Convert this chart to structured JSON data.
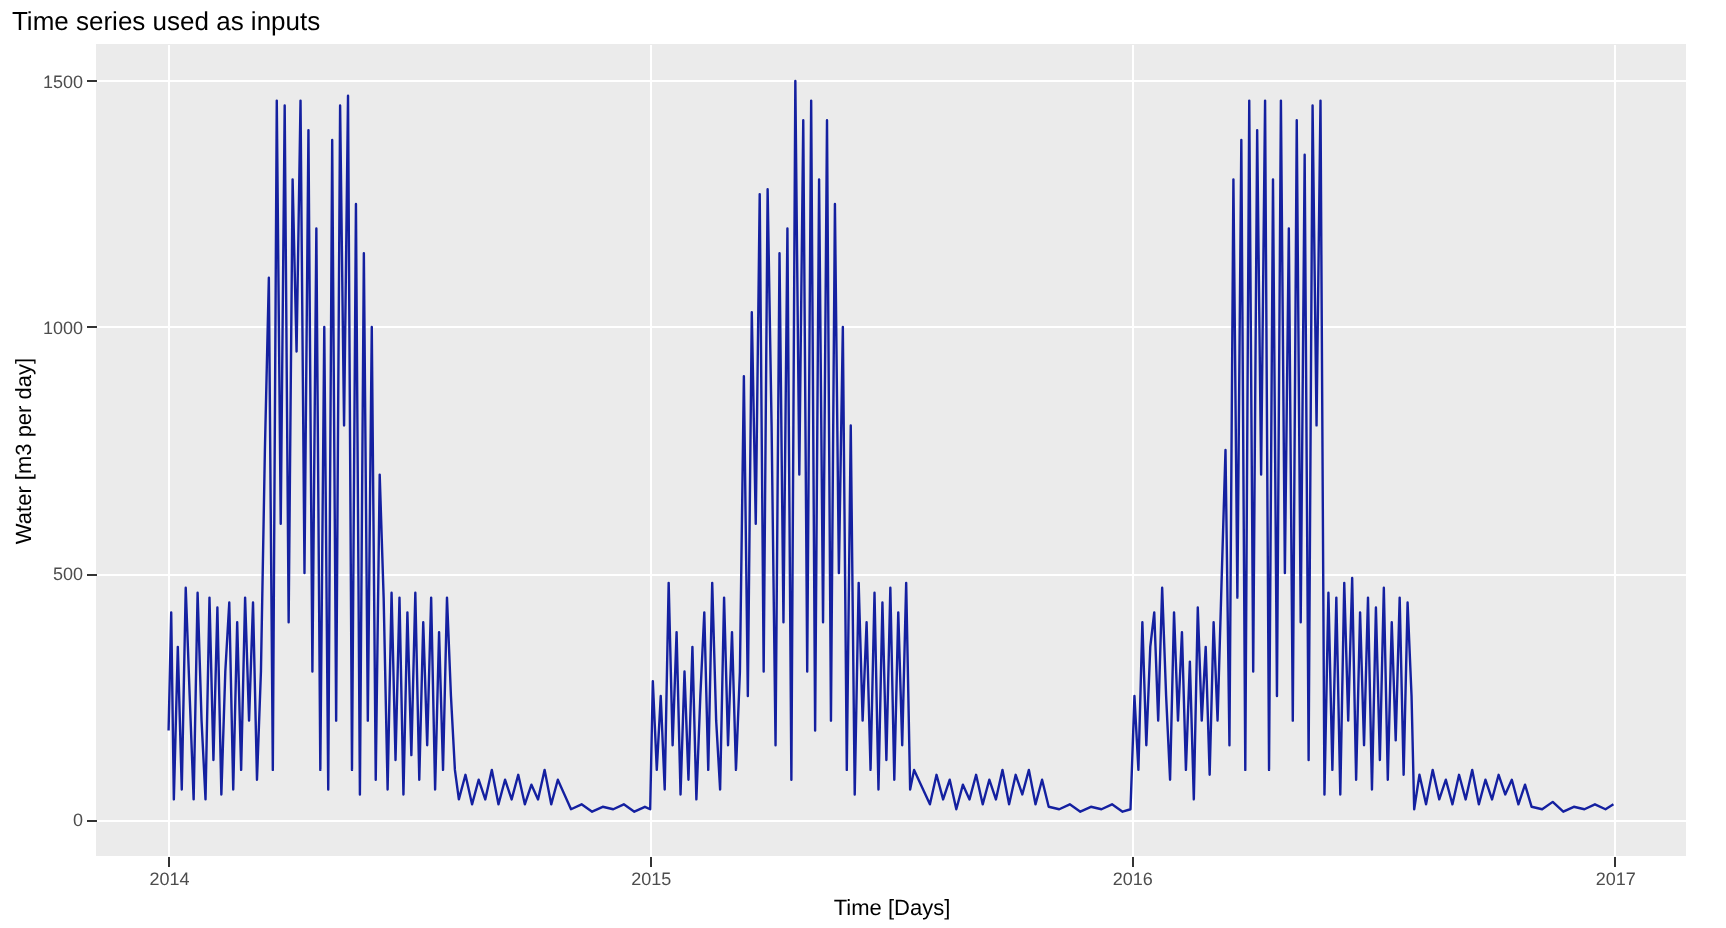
{
  "chart_data": {
    "type": "line",
    "title": "Time series used as inputs",
    "xlabel": "Time [Days]",
    "ylabel": "Water [m3 per day]",
    "xlim": [
      "2013-11-07",
      "2017-02-24"
    ],
    "xticks": [
      "2014",
      "2015",
      "2016",
      "2017"
    ],
    "ylim": [
      -75,
      1575
    ],
    "yticks": [
      0,
      500,
      1000,
      1500
    ],
    "grid": true,
    "line_style": "solid",
    "marker": "none",
    "series": [
      {
        "color": "#1420a0",
        "x": [
          "2014-01-01",
          "2014-01-03",
          "2014-01-05",
          "2014-01-08",
          "2014-01-11",
          "2014-01-14",
          "2014-01-17",
          "2014-01-20",
          "2014-01-23",
          "2014-01-26",
          "2014-01-29",
          "2014-02-01",
          "2014-02-04",
          "2014-02-07",
          "2014-02-10",
          "2014-02-13",
          "2014-02-16",
          "2014-02-19",
          "2014-02-22",
          "2014-02-25",
          "2014-02-28",
          "2014-03-03",
          "2014-03-06",
          "2014-03-09",
          "2014-03-12",
          "2014-03-15",
          "2014-03-18",
          "2014-03-21",
          "2014-03-24",
          "2014-03-27",
          "2014-03-30",
          "2014-04-02",
          "2014-04-05",
          "2014-04-08",
          "2014-04-11",
          "2014-04-14",
          "2014-04-17",
          "2014-04-20",
          "2014-04-23",
          "2014-04-26",
          "2014-04-29",
          "2014-05-02",
          "2014-05-05",
          "2014-05-08",
          "2014-05-11",
          "2014-05-14",
          "2014-05-17",
          "2014-05-20",
          "2014-05-23",
          "2014-05-26",
          "2014-05-29",
          "2014-06-01",
          "2014-06-04",
          "2014-06-07",
          "2014-06-10",
          "2014-06-13",
          "2014-06-16",
          "2014-06-19",
          "2014-06-22",
          "2014-06-25",
          "2014-06-28",
          "2014-07-01",
          "2014-07-04",
          "2014-07-07",
          "2014-07-10",
          "2014-07-13",
          "2014-07-16",
          "2014-07-19",
          "2014-07-22",
          "2014-07-25",
          "2014-07-28",
          "2014-07-31",
          "2014-08-03",
          "2014-08-06",
          "2014-08-09",
          "2014-08-14",
          "2014-08-19",
          "2014-08-24",
          "2014-08-29",
          "2014-09-03",
          "2014-09-08",
          "2014-09-13",
          "2014-09-18",
          "2014-09-23",
          "2014-09-28",
          "2014-10-03",
          "2014-10-08",
          "2014-10-13",
          "2014-10-18",
          "2014-10-23",
          "2014-10-28",
          "2014-11-02",
          "2014-11-10",
          "2014-11-18",
          "2014-11-26",
          "2014-12-04",
          "2014-12-12",
          "2014-12-20",
          "2014-12-28",
          "2015-01-01",
          "2015-01-03",
          "2015-01-06",
          "2015-01-09",
          "2015-01-12",
          "2015-01-15",
          "2015-01-18",
          "2015-01-21",
          "2015-01-24",
          "2015-01-27",
          "2015-01-30",
          "2015-02-02",
          "2015-02-05",
          "2015-02-08",
          "2015-02-11",
          "2015-02-14",
          "2015-02-17",
          "2015-02-20",
          "2015-02-23",
          "2015-02-26",
          "2015-03-01",
          "2015-03-04",
          "2015-03-07",
          "2015-03-10",
          "2015-03-13",
          "2015-03-16",
          "2015-03-19",
          "2015-03-22",
          "2015-03-25",
          "2015-03-28",
          "2015-03-31",
          "2015-04-03",
          "2015-04-06",
          "2015-04-09",
          "2015-04-12",
          "2015-04-15",
          "2015-04-18",
          "2015-04-21",
          "2015-04-24",
          "2015-04-27",
          "2015-04-30",
          "2015-05-03",
          "2015-05-06",
          "2015-05-09",
          "2015-05-12",
          "2015-05-15",
          "2015-05-18",
          "2015-05-21",
          "2015-05-24",
          "2015-05-27",
          "2015-05-30",
          "2015-06-02",
          "2015-06-05",
          "2015-06-08",
          "2015-06-11",
          "2015-06-14",
          "2015-06-17",
          "2015-06-20",
          "2015-06-23",
          "2015-06-26",
          "2015-06-29",
          "2015-07-02",
          "2015-07-05",
          "2015-07-08",
          "2015-07-11",
          "2015-07-14",
          "2015-07-17",
          "2015-07-20",
          "2015-08-01",
          "2015-08-06",
          "2015-08-11",
          "2015-08-16",
          "2015-08-21",
          "2015-08-26",
          "2015-08-31",
          "2015-09-05",
          "2015-09-10",
          "2015-09-15",
          "2015-09-20",
          "2015-09-25",
          "2015-09-30",
          "2015-10-05",
          "2015-10-10",
          "2015-10-15",
          "2015-10-20",
          "2015-10-25",
          "2015-10-30",
          "2015-11-07",
          "2015-11-15",
          "2015-11-23",
          "2015-12-01",
          "2015-12-09",
          "2015-12-17",
          "2015-12-25",
          "2015-12-31",
          "2016-01-03",
          "2016-01-06",
          "2016-01-09",
          "2016-01-12",
          "2016-01-15",
          "2016-01-18",
          "2016-01-21",
          "2016-01-24",
          "2016-01-27",
          "2016-01-30",
          "2016-02-02",
          "2016-02-05",
          "2016-02-08",
          "2016-02-11",
          "2016-02-14",
          "2016-02-17",
          "2016-02-20",
          "2016-02-23",
          "2016-02-26",
          "2016-02-29",
          "2016-03-03",
          "2016-03-06",
          "2016-03-09",
          "2016-03-12",
          "2016-03-15",
          "2016-03-18",
          "2016-03-21",
          "2016-03-24",
          "2016-03-27",
          "2016-03-30",
          "2016-04-02",
          "2016-04-05",
          "2016-04-08",
          "2016-04-11",
          "2016-04-14",
          "2016-04-17",
          "2016-04-20",
          "2016-04-23",
          "2016-04-26",
          "2016-04-29",
          "2016-05-02",
          "2016-05-05",
          "2016-05-08",
          "2016-05-11",
          "2016-05-14",
          "2016-05-17",
          "2016-05-20",
          "2016-05-23",
          "2016-05-26",
          "2016-05-29",
          "2016-06-01",
          "2016-06-04",
          "2016-06-07",
          "2016-06-10",
          "2016-06-13",
          "2016-06-16",
          "2016-06-19",
          "2016-06-22",
          "2016-06-25",
          "2016-06-28",
          "2016-07-01",
          "2016-07-04",
          "2016-07-07",
          "2016-07-10",
          "2016-07-13",
          "2016-07-16",
          "2016-07-19",
          "2016-07-22",
          "2016-07-25",
          "2016-07-28",
          "2016-07-31",
          "2016-08-02",
          "2016-08-06",
          "2016-08-11",
          "2016-08-16",
          "2016-08-21",
          "2016-08-26",
          "2016-08-31",
          "2016-09-05",
          "2016-09-10",
          "2016-09-15",
          "2016-09-20",
          "2016-09-25",
          "2016-09-30",
          "2016-10-05",
          "2016-10-10",
          "2016-10-15",
          "2016-10-20",
          "2016-10-25",
          "2016-10-30",
          "2016-11-07",
          "2016-11-15",
          "2016-11-23",
          "2016-12-01",
          "2016-12-09",
          "2016-12-17",
          "2016-12-25",
          "2016-12-31"
        ],
        "values": [
          180,
          420,
          40,
          350,
          60,
          470,
          250,
          40,
          460,
          200,
          40,
          450,
          120,
          430,
          50,
          300,
          440,
          60,
          400,
          100,
          450,
          200,
          440,
          80,
          300,
          750,
          1100,
          100,
          1460,
          600,
          1450,
          400,
          1300,
          950,
          1460,
          500,
          1400,
          300,
          1200,
          100,
          1000,
          60,
          1380,
          200,
          1450,
          800,
          1470,
          100,
          1250,
          50,
          1150,
          200,
          1000,
          80,
          700,
          450,
          60,
          460,
          120,
          450,
          50,
          420,
          130,
          460,
          80,
          400,
          150,
          450,
          60,
          380,
          100,
          450,
          250,
          100,
          40,
          90,
          30,
          80,
          40,
          100,
          30,
          80,
          40,
          90,
          30,
          70,
          40,
          100,
          30,
          80,
          50,
          20,
          30,
          15,
          25,
          20,
          30,
          15,
          25,
          20,
          280,
          100,
          250,
          60,
          480,
          150,
          380,
          50,
          300,
          80,
          350,
          40,
          250,
          420,
          100,
          480,
          200,
          60,
          450,
          150,
          380,
          100,
          300,
          900,
          250,
          1030,
          600,
          1270,
          300,
          1280,
          800,
          150,
          1150,
          400,
          1200,
          80,
          1500,
          700,
          1420,
          300,
          1460,
          180,
          1300,
          400,
          1420,
          200,
          1250,
          500,
          1000,
          100,
          800,
          50,
          480,
          200,
          400,
          100,
          460,
          60,
          440,
          120,
          470,
          80,
          420,
          150,
          480,
          60,
          100,
          30,
          90,
          40,
          80,
          20,
          70,
          40,
          90,
          30,
          80,
          40,
          100,
          30,
          90,
          50,
          100,
          30,
          80,
          25,
          20,
          30,
          15,
          25,
          20,
          30,
          15,
          20,
          250,
          100,
          400,
          150,
          350,
          420,
          200,
          470,
          250,
          80,
          420,
          200,
          380,
          100,
          320,
          40,
          430,
          200,
          350,
          90,
          400,
          200,
          480,
          750,
          150,
          1300,
          450,
          1380,
          100,
          1460,
          300,
          1400,
          700,
          1460,
          100,
          1300,
          250,
          1460,
          500,
          1200,
          200,
          1420,
          400,
          1350,
          120,
          1450,
          800,
          1460,
          50,
          460,
          100,
          450,
          50,
          480,
          200,
          490,
          80,
          420,
          150,
          450,
          60,
          430,
          120,
          470,
          80,
          400,
          160,
          450,
          90,
          440,
          250,
          20,
          90,
          30,
          100,
          40,
          80,
          30,
          90,
          40,
          100,
          30,
          80,
          40,
          90,
          50,
          80,
          30,
          70,
          25,
          20,
          35,
          15,
          25,
          20,
          30,
          20,
          30
        ]
      }
    ]
  }
}
